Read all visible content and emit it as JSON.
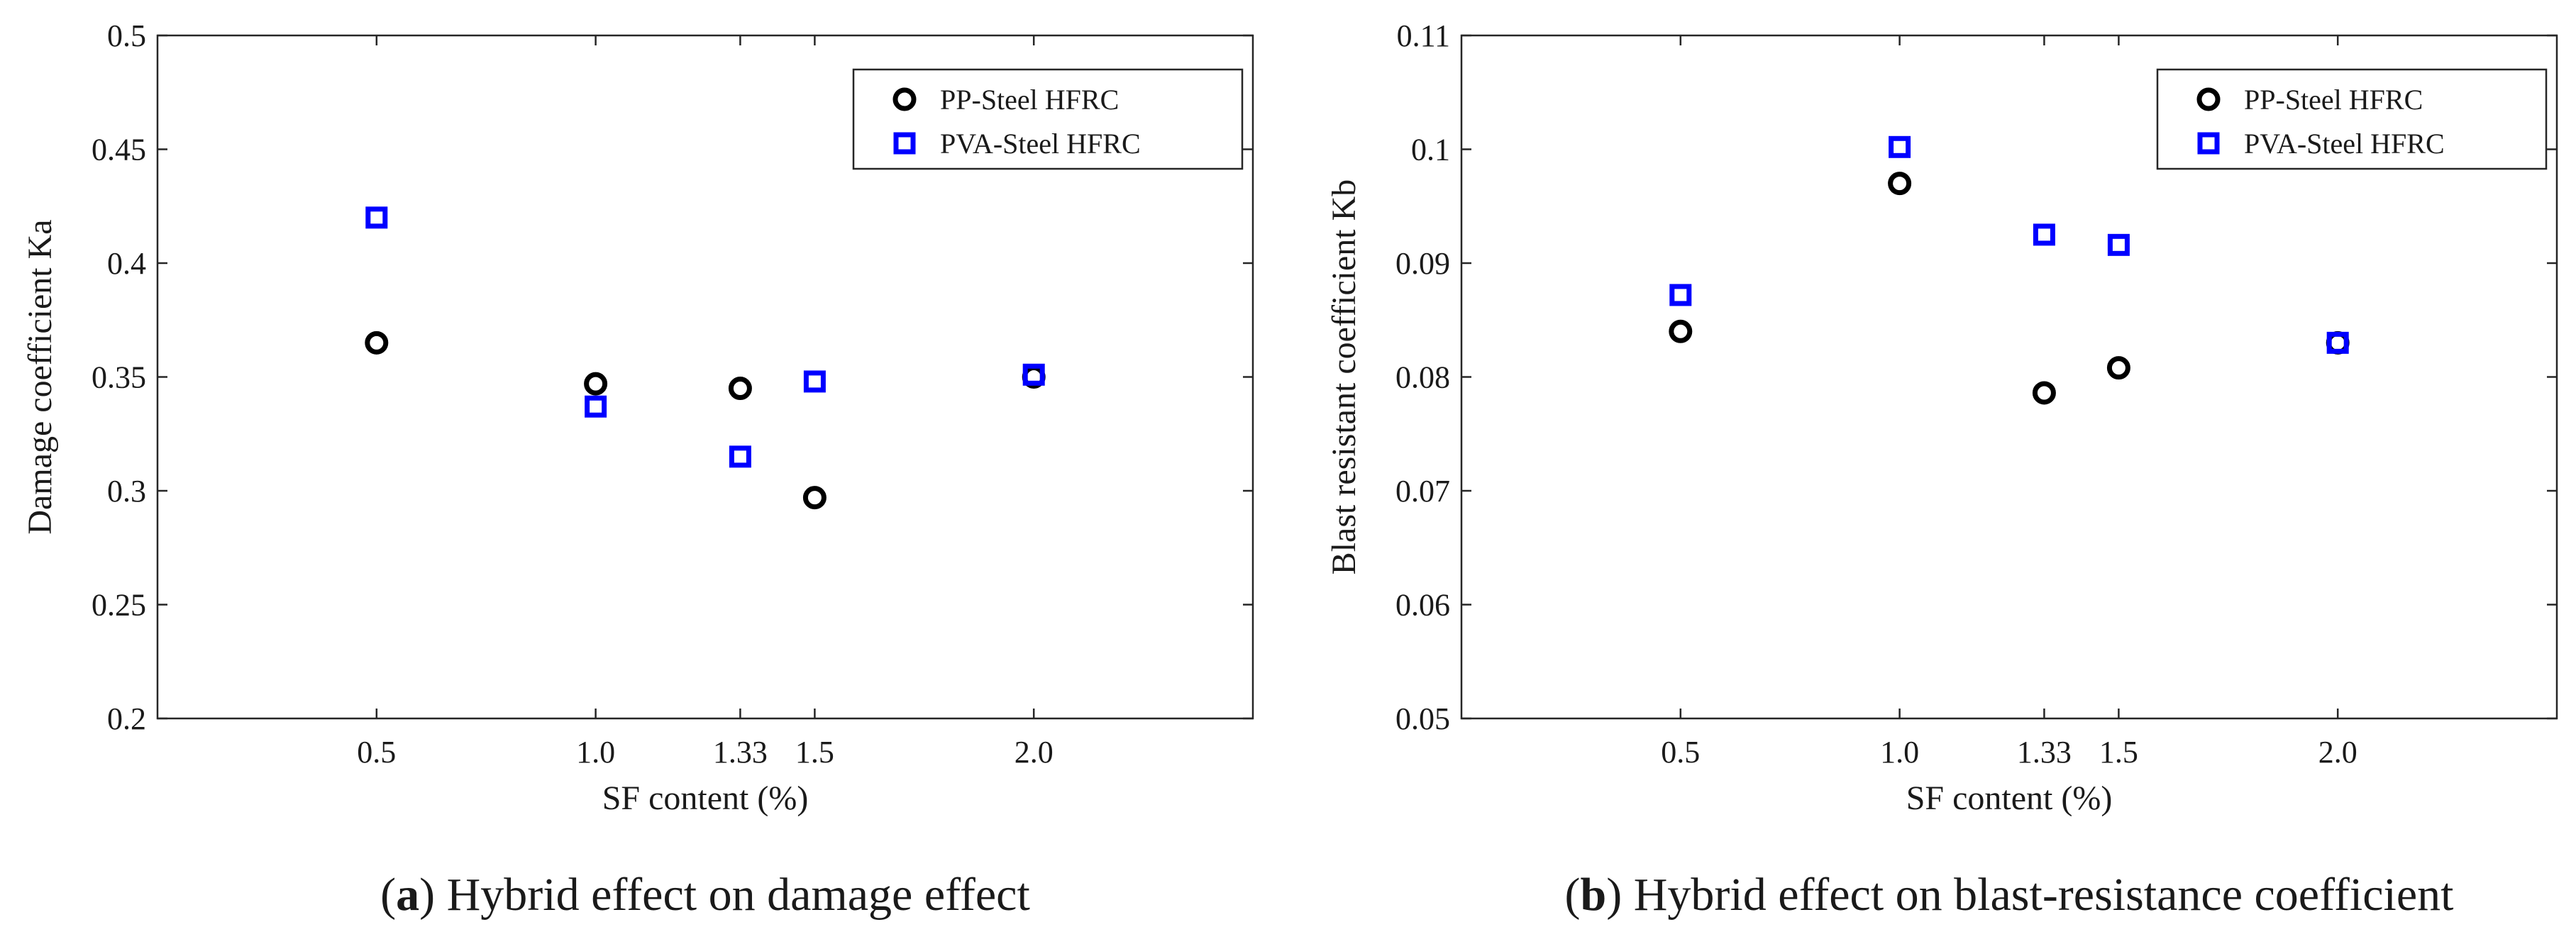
{
  "chart_data": [
    {
      "type": "scatter",
      "panel": "a",
      "caption_letter": "a",
      "caption_text": "Hybrid effect on damage effect",
      "xlabel": "SF content (%)",
      "ylabel": "Damage coefficient Ka",
      "xlim": [
        0.0,
        2.5
      ],
      "ylim": [
        0.2,
        0.5
      ],
      "xticks": [
        0.5,
        1.0,
        1.33,
        1.5,
        2.0
      ],
      "xtick_labels": [
        "0.5",
        "1.0",
        "1.33",
        "1.5",
        "2.0"
      ],
      "yticks": [
        0.2,
        0.25,
        0.3,
        0.35,
        0.4,
        0.45,
        0.5
      ],
      "ytick_labels": [
        "0.2",
        "0.25",
        "0.3",
        "0.35",
        "0.4",
        "0.45",
        "0.5"
      ],
      "grid": false,
      "legend_position": "top-right",
      "series": [
        {
          "name": "PP-Steel HFRC",
          "marker": "circle",
          "color": "#000000",
          "points": [
            [
              0.5,
              0.365
            ],
            [
              1.0,
              0.347
            ],
            [
              1.33,
              0.345
            ],
            [
              1.5,
              0.297
            ],
            [
              2.0,
              0.35
            ]
          ]
        },
        {
          "name": "PVA-Steel HFRC",
          "marker": "square",
          "color": "#0000ff",
          "points": [
            [
              0.5,
              0.42
            ],
            [
              1.0,
              0.337
            ],
            [
              1.33,
              0.315
            ],
            [
              1.5,
              0.348
            ],
            [
              2.0,
              0.351
            ]
          ]
        }
      ]
    },
    {
      "type": "scatter",
      "panel": "b",
      "caption_letter": "b",
      "caption_text": "Hybrid effect on blast-resistance coefficient",
      "xlabel": "SF content (%)",
      "ylabel": "Blast resistant coefficient Kb",
      "xlim": [
        0.0,
        2.5
      ],
      "ylim": [
        0.05,
        0.11
      ],
      "xticks": [
        0.5,
        1.0,
        1.33,
        1.5,
        2.0
      ],
      "xtick_labels": [
        "0.5",
        "1.0",
        "1.33",
        "1.5",
        "2.0"
      ],
      "yticks": [
        0.05,
        0.06,
        0.07,
        0.08,
        0.09,
        0.1,
        0.11
      ],
      "ytick_labels": [
        "0.05",
        "0.06",
        "0.07",
        "0.08",
        "0.09",
        "0.1",
        "0.11"
      ],
      "grid": false,
      "legend_position": "top-right",
      "series": [
        {
          "name": "PP-Steel HFRC",
          "marker": "circle",
          "color": "#000000",
          "points": [
            [
              0.5,
              0.084
            ],
            [
              1.0,
              0.097
            ],
            [
              1.33,
              0.0786
            ],
            [
              1.5,
              0.0808
            ],
            [
              2.0,
              0.083
            ]
          ]
        },
        {
          "name": "PVA-Steel HFRC",
          "marker": "square",
          "color": "#0000ff",
          "points": [
            [
              0.5,
              0.0872
            ],
            [
              1.0,
              0.1002
            ],
            [
              1.33,
              0.0925
            ],
            [
              1.5,
              0.0916
            ],
            [
              2.0,
              0.083
            ]
          ]
        }
      ]
    }
  ]
}
